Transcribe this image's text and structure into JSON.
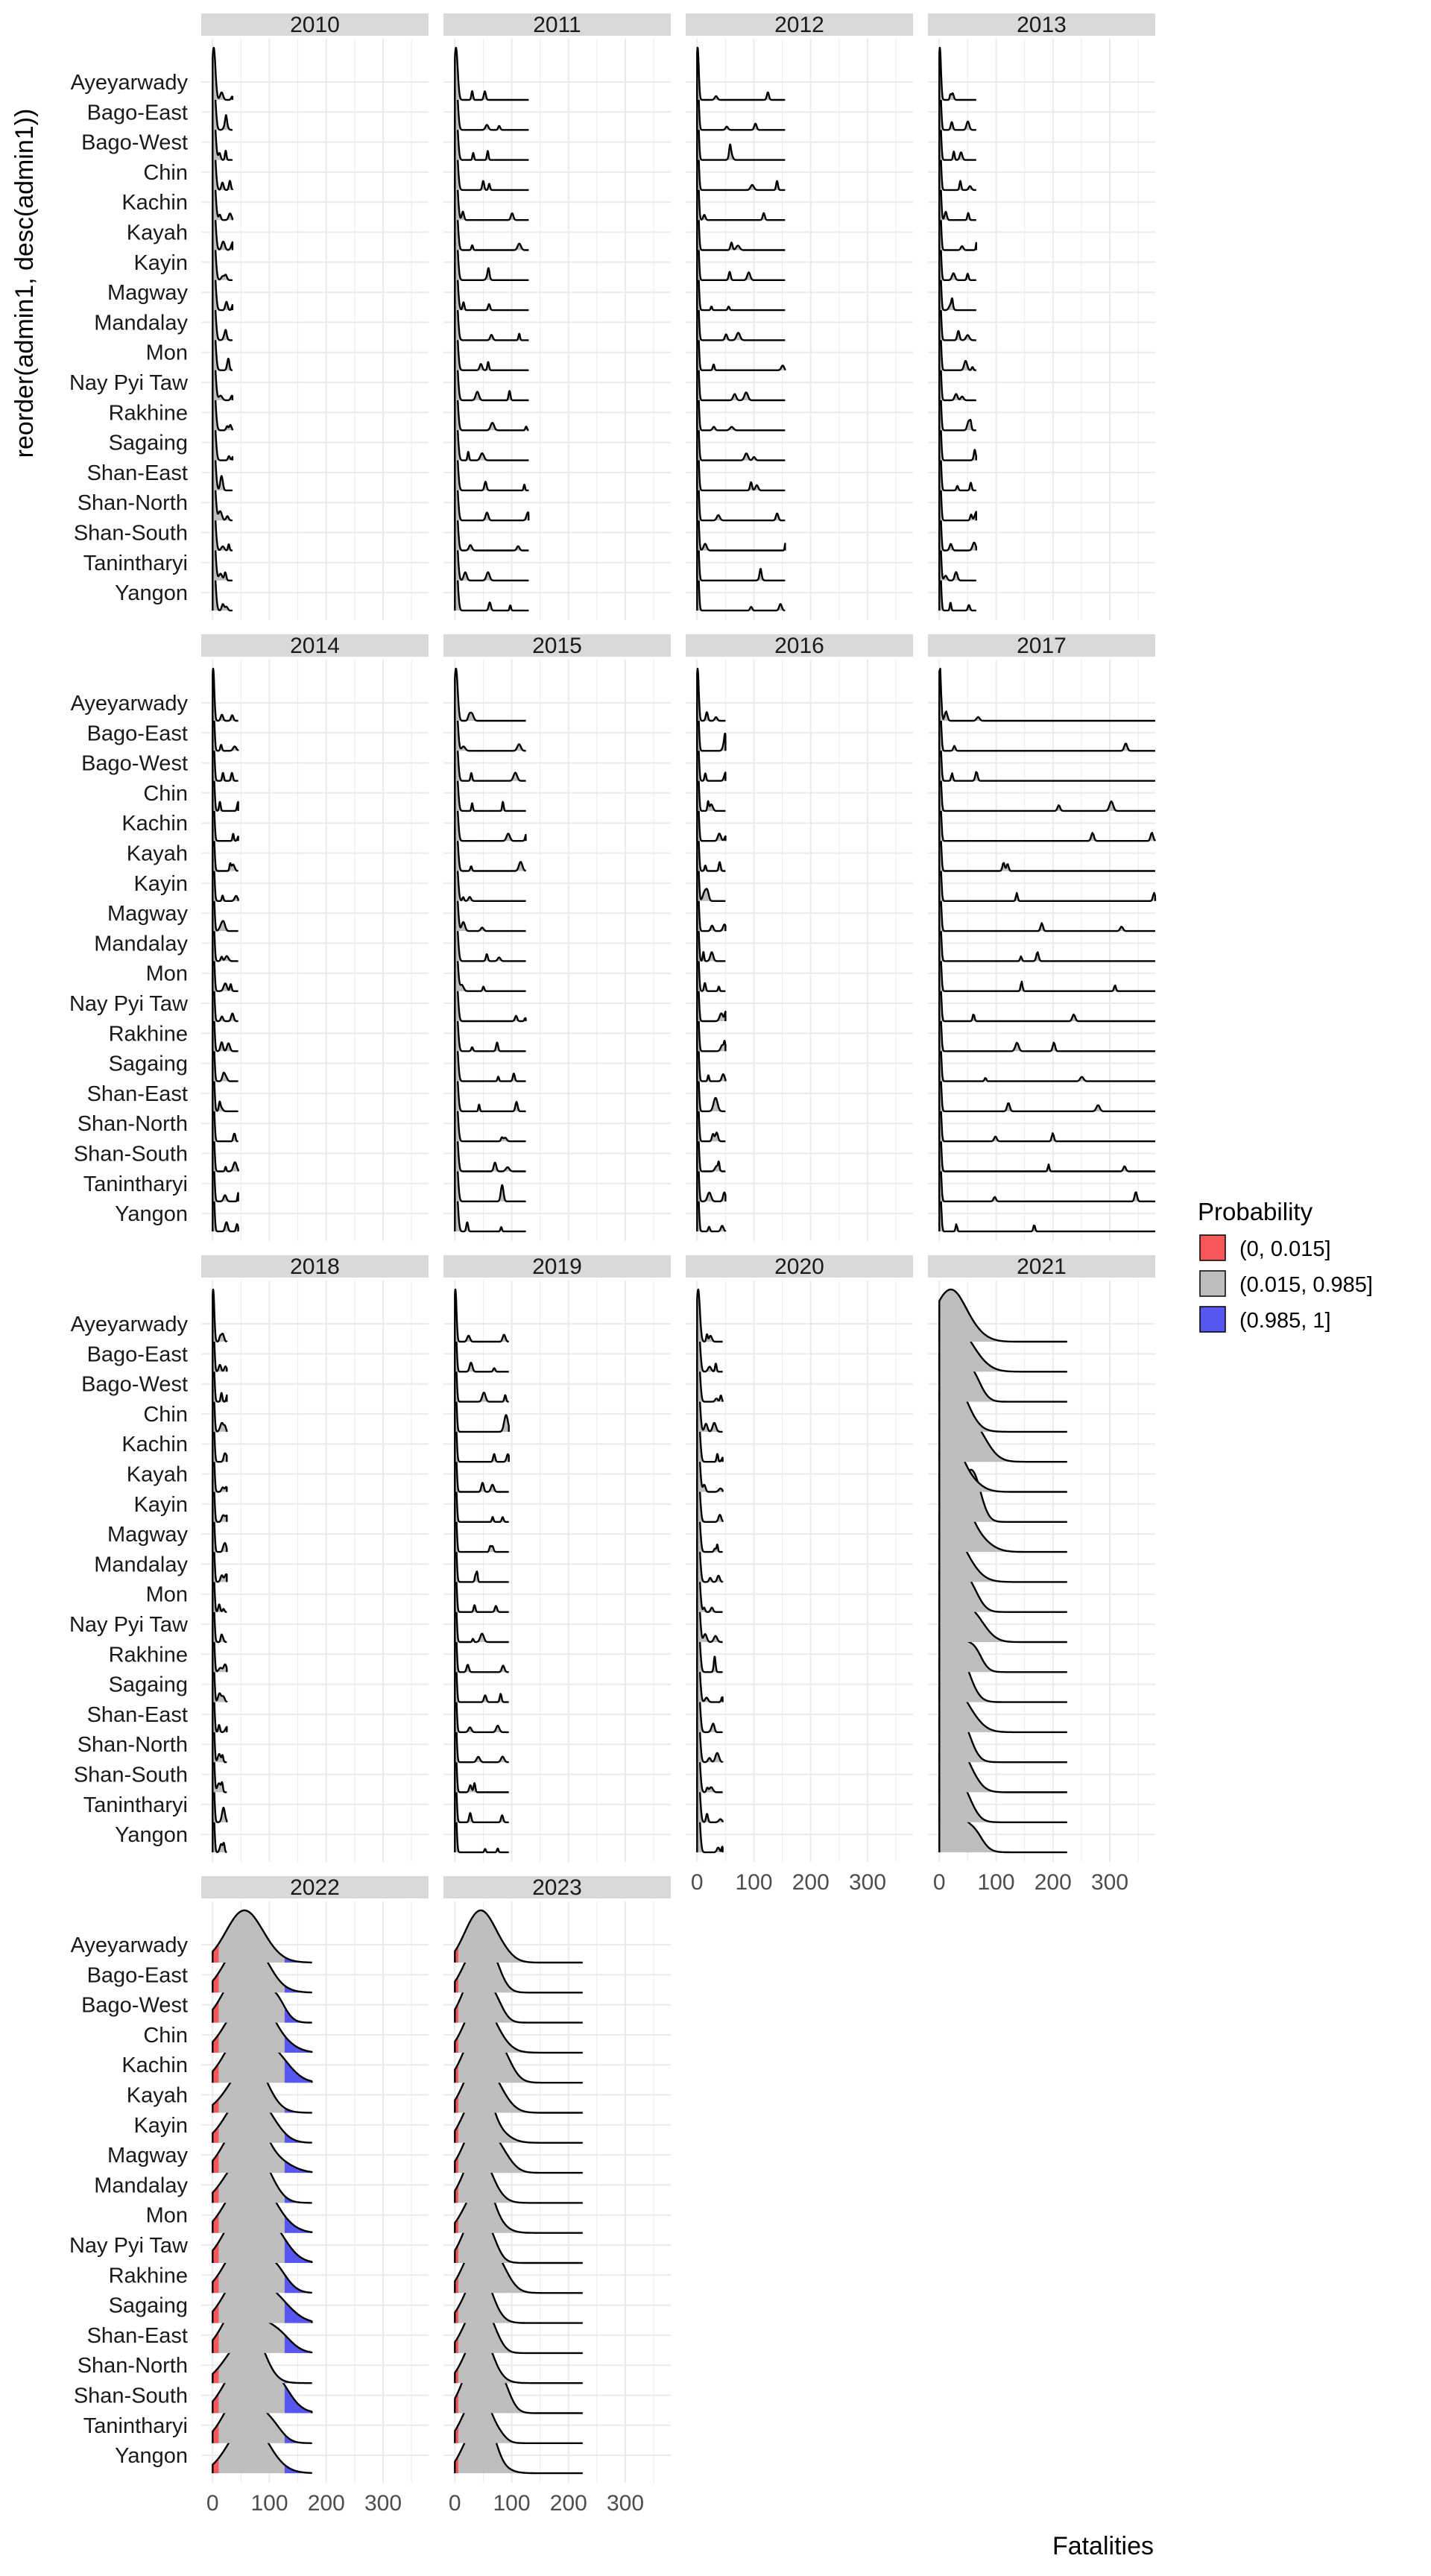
{
  "chart_data": {
    "type": "area",
    "subtype": "faceted ridgeline density plot",
    "facet_by": "year",
    "facets": [
      "2010",
      "2011",
      "2012",
      "2013",
      "2014",
      "2015",
      "2016",
      "2017",
      "2018",
      "2019",
      "2020",
      "2021",
      "2022",
      "2023"
    ],
    "facet_columns": 4,
    "rows": [
      "Ayeyarwady",
      "Bago-East",
      "Bago-West",
      "Chin",
      "Kachin",
      "Kayah",
      "Kayin",
      "Magway",
      "Mandalay",
      "Mon",
      "Nay Pyi Taw",
      "Rakhine",
      "Sagaing",
      "Shan-East",
      "Shan-North",
      "Shan-South",
      "Tanintharyi",
      "Yangon"
    ],
    "xlabel": "Fatalities",
    "ylabel": "reorder(admin1, desc(admin1))",
    "x_ticks": [
      0,
      100,
      200,
      300
    ],
    "xlim": [
      -20,
      380
    ],
    "grid": true,
    "legend": {
      "title": "Probability",
      "position": "right",
      "entries": [
        {
          "label": "(0, 0.015]",
          "color": "#F8575A"
        },
        {
          "label": "(0.015, 0.985]",
          "color": "#BEBEBE"
        },
        {
          "label": "(0.985, 1]",
          "color": "#5757F0"
        }
      ]
    },
    "x_max_by_facet": {
      "2010": 35,
      "2011": 130,
      "2012": 155,
      "2013": 65,
      "2014": 45,
      "2015": 125,
      "2016": 50,
      "2017": 380,
      "2018": 25,
      "2019": 95,
      "2020": 45,
      "2021": 225,
      "2022": 175,
      "2023": 225
    },
    "series_shape": {
      "2010": {
        "peak": 2,
        "width": 3
      },
      "2011": {
        "peak": 2,
        "width": 3
      },
      "2012": {
        "peak": 1,
        "width": 2
      },
      "2013": {
        "peak": 1,
        "width": 2
      },
      "2014": {
        "peak": 1,
        "width": 2
      },
      "2015": {
        "peak": 2,
        "width": 3
      },
      "2016": {
        "peak": 1,
        "width": 2
      },
      "2017": {
        "peak": 1,
        "width": 2
      },
      "2018": {
        "peak": 1,
        "width": 2
      },
      "2019": {
        "peak": 1,
        "width": 2
      },
      "2020": {
        "peak": 2,
        "width": 3
      },
      "2021": {
        "peak": 10,
        "width": 25
      },
      "2022": {
        "peak": 50,
        "width": 30
      },
      "2023": {
        "peak": 35,
        "width": 22
      }
    }
  }
}
